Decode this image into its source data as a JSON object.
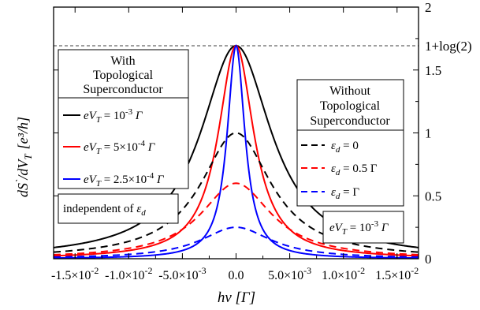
{
  "chart_data": {
    "type": "line",
    "xlabel": "hν  [Γ]",
    "ylabel_main": "dS",
    "ylabel_sup": "`",
    "ylabel_mid": "/dV",
    "ylabel_sub": "T",
    "ylabel_units": "[e³/h]",
    "xlim": [
      -0.017,
      0.017
    ],
    "ylim": [
      0,
      2
    ],
    "x_ticks": [
      -0.015,
      -0.01,
      -0.005,
      0.0,
      0.005,
      0.01,
      0.015
    ],
    "x_tick_labels": [
      {
        "mant": "-1.5×10",
        "exp": "-2"
      },
      {
        "mant": "-1.0×10",
        "exp": "-2"
      },
      {
        "mant": "-5.0×10",
        "exp": "-3"
      },
      {
        "mant": "0.0",
        "exp": ""
      },
      {
        "mant": "5.0×10",
        "exp": "-3"
      },
      {
        "mant": "1.0×10",
        "exp": "-2"
      },
      {
        "mant": "1.5×10",
        "exp": "-2"
      }
    ],
    "y_ticks": [
      0,
      0.5,
      1,
      1.5,
      2
    ],
    "y_tick_labels": [
      "0",
      "0.5",
      "1",
      "1.5",
      "2"
    ],
    "reference_line": {
      "value": 1.693,
      "label": "1+log(2)",
      "style": "dashed"
    },
    "series": [
      {
        "name": "eV_T = 10^-3 Γ",
        "color": "#000000",
        "dash": "solid",
        "peak": 1.693,
        "width": 0.004
      },
      {
        "name": "eV_T = 5×10^-4 Γ",
        "color": "#ff0000",
        "dash": "solid",
        "peak": 1.693,
        "width": 0.002
      },
      {
        "name": "eV_T = 2.5×10^-4 Γ",
        "color": "#0000ff",
        "dash": "solid",
        "peak": 1.693,
        "width": 0.001
      },
      {
        "name": "ε_d = 0",
        "color": "#000000",
        "dash": "dashed",
        "peak": 1.0,
        "width": 0.004
      },
      {
        "name": "ε_d = 0.5 Γ",
        "color": "#ff0000",
        "dash": "dashed",
        "peak": 0.6,
        "width": 0.004
      },
      {
        "name": "ε_d = Γ",
        "color": "#0000ff",
        "dash": "dashed",
        "peak": 0.25,
        "width": 0.004
      }
    ]
  },
  "legend_with": {
    "title": [
      "With",
      "Topological",
      "Superconductor"
    ],
    "entries": [
      {
        "pre": "eV",
        "sub": "T",
        "mid": " = 10",
        "sup": "-3",
        "post": " Γ"
      },
      {
        "pre": "eV",
        "sub": "T",
        "mid": " = 5×10",
        "sup": "-4",
        "post": " Γ"
      },
      {
        "pre": "eV",
        "sub": "T",
        "mid": " = 2.5×10",
        "sup": "-4",
        "post": " Γ"
      }
    ],
    "note_pre": "independent of ",
    "note_sym": "ε",
    "note_sub": "d"
  },
  "legend_without": {
    "title": [
      "Without",
      "Topological",
      "Superconductor"
    ],
    "entries": [
      {
        "sym": "ε",
        "sub": "d",
        "post": " = 0"
      },
      {
        "sym": "ε",
        "sub": "d",
        "post": " = 0.5 Γ"
      },
      {
        "sym": "ε",
        "sub": "d",
        "post": " = Γ"
      }
    ],
    "note": {
      "pre": "eV",
      "sub": "T",
      "mid": " = 10",
      "sup": "-3",
      "post": " Γ"
    }
  }
}
